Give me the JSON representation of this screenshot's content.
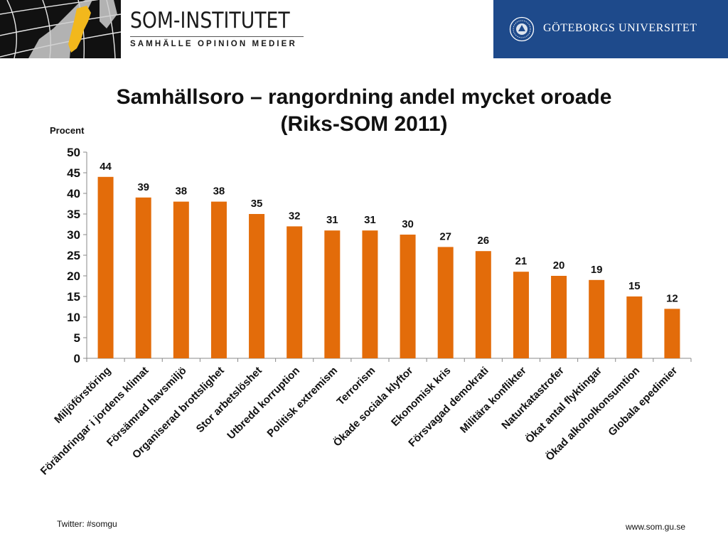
{
  "header": {
    "logo_title": "SOM-INSTITUTET",
    "logo_subtitle": "SAMHÄLLE   OPINION   MEDIER",
    "university": "GÖTEBORGS UNIVERSITET",
    "university_color": "#1e4a8b",
    "logo_map_color": "#111111",
    "sweden_color": "#f2b81c"
  },
  "chart_data": {
    "type": "bar",
    "title": "Samhällsoro – rangordning andel mycket oroade",
    "subtitle": "(Riks-SOM 2011)",
    "ylabel": "Procent",
    "xlabel": "",
    "ylim": [
      0,
      50
    ],
    "yticks": [
      0,
      5,
      10,
      15,
      20,
      25,
      30,
      35,
      40,
      45,
      50
    ],
    "grid": false,
    "bar_color": "#e36c0a",
    "categories": [
      "Miljöförstöring",
      "Förändringar i jordens klimat",
      "Försämrad havsmiljö",
      "Organiserad brottslighet",
      "Stor arbetslöshet",
      "Utbredd korruption",
      "Politisk extremism",
      "Terrorism",
      "Ökade sociala klyftor",
      "Ekonomisk kris",
      "Försvagad demokrati",
      "Militära konflikter",
      "Naturkatastrofer",
      "Ökat antal flyktingar",
      "Ökad alkoholkonsumtion",
      "Globala epedimier"
    ],
    "values": [
      44,
      39,
      38,
      38,
      35,
      32,
      31,
      31,
      30,
      27,
      26,
      21,
      20,
      19,
      15,
      12
    ]
  },
  "footer": {
    "twitter": "Twitter: #somgu",
    "website": "www.som.gu.se"
  }
}
